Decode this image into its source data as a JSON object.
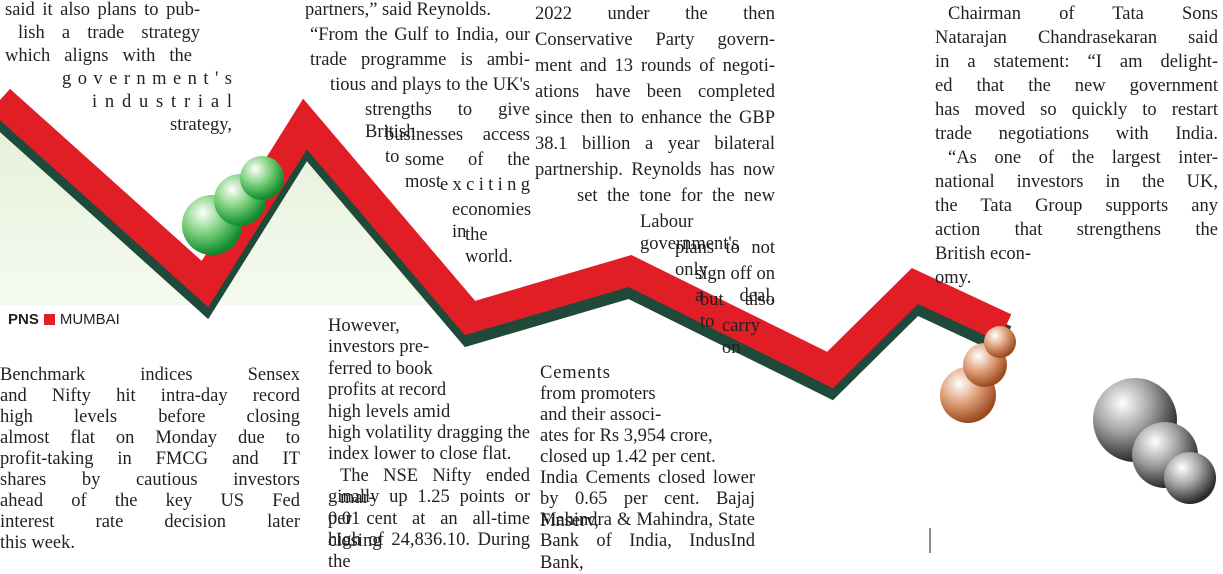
{
  "top_columns": [
    {
      "lines": [
        "said it also plans to pub-",
        "lish a trade strategy",
        "which aligns with the",
        "government's",
        "industrial",
        "strategy,"
      ]
    },
    {
      "lines": [
        "partners,” said Reynolds.",
        "“From the Gulf to India, our",
        "trade programme is ambi-",
        "tious and plays to the UK's",
        "strengths to give British",
        "businesses access to",
        "some of the most",
        "exciting",
        "economies in",
        "the world."
      ]
    },
    {
      "lines": [
        "2022 under the then",
        "Conservative Party govern-",
        "ment and 13 rounds of negoti-",
        "ations have been completed",
        "since then to enhance the GBP",
        "38.1 billion a year bilateral",
        "partnership. Reynolds has now",
        "set the tone for the new",
        "Labour government's",
        "plans to not only",
        "sign off on a deal,",
        "but also to",
        "carry on"
      ]
    },
    {
      "lines": [
        "Chairman of Tata Sons",
        "Natarajan Chandrasekaran said",
        "in a statement: “I am delight-",
        "ed that the new government",
        "has moved so quickly to restart",
        "trade negotiations with India.",
        "“As one of the largest inter-",
        "national investors in the UK,",
        "the Tata Group supports any",
        "action that strengthens the",
        "British econ-",
        "omy."
      ]
    }
  ],
  "byline": {
    "agency": "PNS",
    "location": "MUMBAI"
  },
  "bottom_columns": [
    {
      "lines": [
        "Benchmark indices Sensex",
        "and Nifty hit intra-day record",
        "high levels before closing",
        "almost flat on Monday due to",
        "profit-taking in FMCG and IT",
        "shares by cautious investors",
        "ahead of the key US Fed",
        "interest rate decision later",
        "this week."
      ]
    },
    {
      "lines": [
        "However,",
        "investors pre-",
        "ferred to book",
        "profits at record",
        "high levels amid",
        "high volatility dragging the",
        "index lower to close flat.",
        "The NSE Nifty ended mar-",
        "ginally up 1.25 points or 0.01",
        "per cent at an all-time closing",
        "high of 24,836.10. During the"
      ]
    },
    {
      "lines": [
        "Cements",
        "from promoters",
        "and their associ-",
        "ates for Rs 3,954 crore,",
        "closed up 1.42 per cent.",
        "India Cements closed lower",
        "by 0.65 per cent. Bajaj Finserv,",
        "Mahindra & Mahindra, State",
        "Bank of India, IndusInd Bank,"
      ]
    }
  ]
}
